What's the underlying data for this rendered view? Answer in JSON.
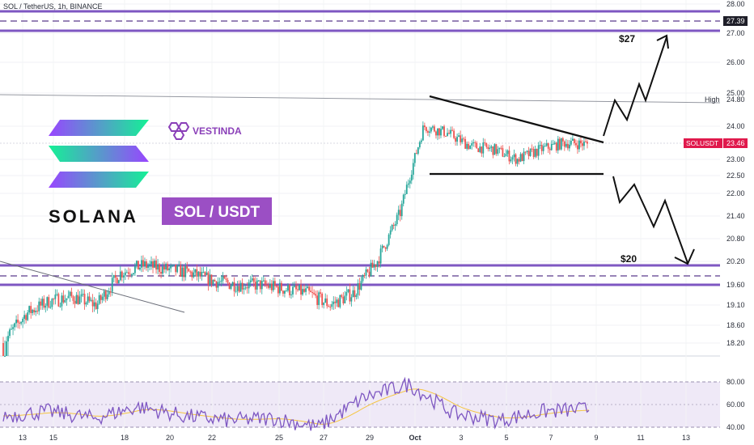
{
  "header": {
    "symbol_line": "SOL / TetherUS, 1h, BINANCE"
  },
  "branding": {
    "solana_word": "SOLANA",
    "pair_badge": "SOL / USDT",
    "vestinda": "VESTINDA",
    "badge_color": "#9b4fc4"
  },
  "annotations": {
    "target_up": "$27",
    "target_down": "$20"
  },
  "price_axis": {
    "ticks": [
      "28.00",
      "27.00",
      "26.00",
      "25.00",
      "24.00",
      "23.00",
      "22.50",
      "22.00",
      "21.40",
      "20.80",
      "20.20",
      "19.60",
      "19.10",
      "18.60",
      "18.20"
    ],
    "tag_level": "27.39",
    "high_label": "High",
    "high_value": "24.80",
    "current_symbol": "SOLUSDT",
    "current_value": "23.46",
    "current_color": "#e0194c"
  },
  "rsi_axis": {
    "ticks": [
      "80.00",
      "60.00",
      "40.00"
    ]
  },
  "time_axis": {
    "ticks": [
      "13",
      "15",
      "18",
      "20",
      "22",
      "25",
      "27",
      "29",
      "Oct",
      "3",
      "5",
      "7",
      "9",
      "11",
      "13"
    ]
  },
  "colors": {
    "band_purple": "#7e57c2",
    "candle_up": "#26a69a",
    "candle_down": "#ef5350",
    "rsi_line": "#7e57c2",
    "rsi_ma": "#f5c542",
    "rsi_bg": "#efe9f7"
  },
  "chart_data": {
    "type": "candlestick",
    "title": "SOL / TetherUS, 1h, BINANCE",
    "x_range": [
      "Sep 13",
      "Oct 13"
    ],
    "ylim": [
      18.0,
      28.2
    ],
    "series": [
      {
        "name": "SOLUSDT",
        "approx_path": [
          {
            "x": "Sep 13",
            "y": 18.2
          },
          {
            "x": "Sep 14",
            "y": 18.9
          },
          {
            "x": "Sep 15",
            "y": 19.2
          },
          {
            "x": "Sep 16",
            "y": 19.3
          },
          {
            "x": "Sep 17",
            "y": 19.1
          },
          {
            "x": "Sep 18",
            "y": 19.9
          },
          {
            "x": "Sep 19",
            "y": 20.1
          },
          {
            "x": "Sep 20",
            "y": 20.0
          },
          {
            "x": "Sep 21",
            "y": 19.9
          },
          {
            "x": "Sep 22",
            "y": 19.7
          },
          {
            "x": "Sep 23",
            "y": 19.6
          },
          {
            "x": "Sep 24",
            "y": 19.6
          },
          {
            "x": "Sep 25",
            "y": 19.5
          },
          {
            "x": "Sep 26",
            "y": 19.4
          },
          {
            "x": "Sep 27",
            "y": 19.1
          },
          {
            "x": "Sep 28",
            "y": 19.4
          },
          {
            "x": "Sep 29",
            "y": 20.2
          },
          {
            "x": "Sep 30",
            "y": 21.5
          },
          {
            "x": "Oct 1",
            "y": 24.0
          },
          {
            "x": "Oct 2",
            "y": 23.8
          },
          {
            "x": "Oct 3",
            "y": 23.4
          },
          {
            "x": "Oct 4",
            "y": 23.3
          },
          {
            "x": "Oct 5",
            "y": 23.0
          },
          {
            "x": "Oct 6",
            "y": 23.3
          },
          {
            "x": "Oct 7",
            "y": 23.5
          },
          {
            "x": "Oct 8",
            "y": 23.46
          }
        ]
      }
    ],
    "levels": {
      "resistance_band": [
        27.0,
        28.0
      ],
      "resistance_mid": 27.39,
      "support_band": [
        19.7,
        20.1
      ],
      "support_mid": 19.9,
      "high": 24.8,
      "triangle_base": 22.5
    },
    "projections": [
      {
        "label": "$27",
        "target": 27.0,
        "direction": "up"
      },
      {
        "label": "$20",
        "target": 20.2,
        "direction": "down"
      }
    ],
    "rsi": {
      "ylim": [
        30,
        90
      ],
      "levels": [
        80,
        60,
        40
      ],
      "approx_path": [
        {
          "x": "Sep 13",
          "y": 50
        },
        {
          "x": "Sep 15",
          "y": 54
        },
        {
          "x": "Sep 17",
          "y": 48
        },
        {
          "x": "Sep 19",
          "y": 58
        },
        {
          "x": "Sep 21",
          "y": 50
        },
        {
          "x": "Sep 23",
          "y": 46
        },
        {
          "x": "Sep 25",
          "y": 48
        },
        {
          "x": "Sep 27",
          "y": 40
        },
        {
          "x": "Sep 29",
          "y": 66
        },
        {
          "x": "Oct 1",
          "y": 78
        },
        {
          "x": "Oct 3",
          "y": 52
        },
        {
          "x": "Oct 5",
          "y": 46
        },
        {
          "x": "Oct 7",
          "y": 54
        },
        {
          "x": "Oct 8",
          "y": 56
        }
      ]
    }
  }
}
